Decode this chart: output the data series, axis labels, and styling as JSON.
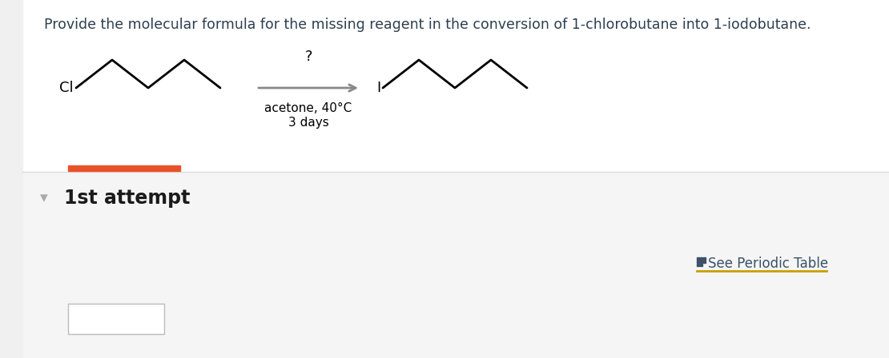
{
  "bg_color": "#ffffff",
  "top_section_bg": "#ffffff",
  "bottom_section_bg": "#f5f5f5",
  "title_text": "Provide the molecular formula for the missing reagent in the conversion of 1-chlorobutane into 1-iodobutane.",
  "title_color": "#2d3f50",
  "title_fontsize": 12.5,
  "question_mark": "?",
  "arrow_label1": "acetone, 40°C",
  "arrow_label2": "3 days",
  "arrow_color": "#888888",
  "left_molecule_label": "Cl",
  "right_molecule_label": "I",
  "divider_color": "#dddddd",
  "orange_bar_color": "#e8522a",
  "attempt_text": "1st attempt",
  "attempt_color": "#1a1a1a",
  "attempt_fontsize": 17,
  "chevron_color": "#aaaaaa",
  "periodic_table_text": "See Periodic Table",
  "periodic_table_color": "#c8a000",
  "periodic_table_icon_color": "#3a5169",
  "periodic_table_fontsize": 12
}
